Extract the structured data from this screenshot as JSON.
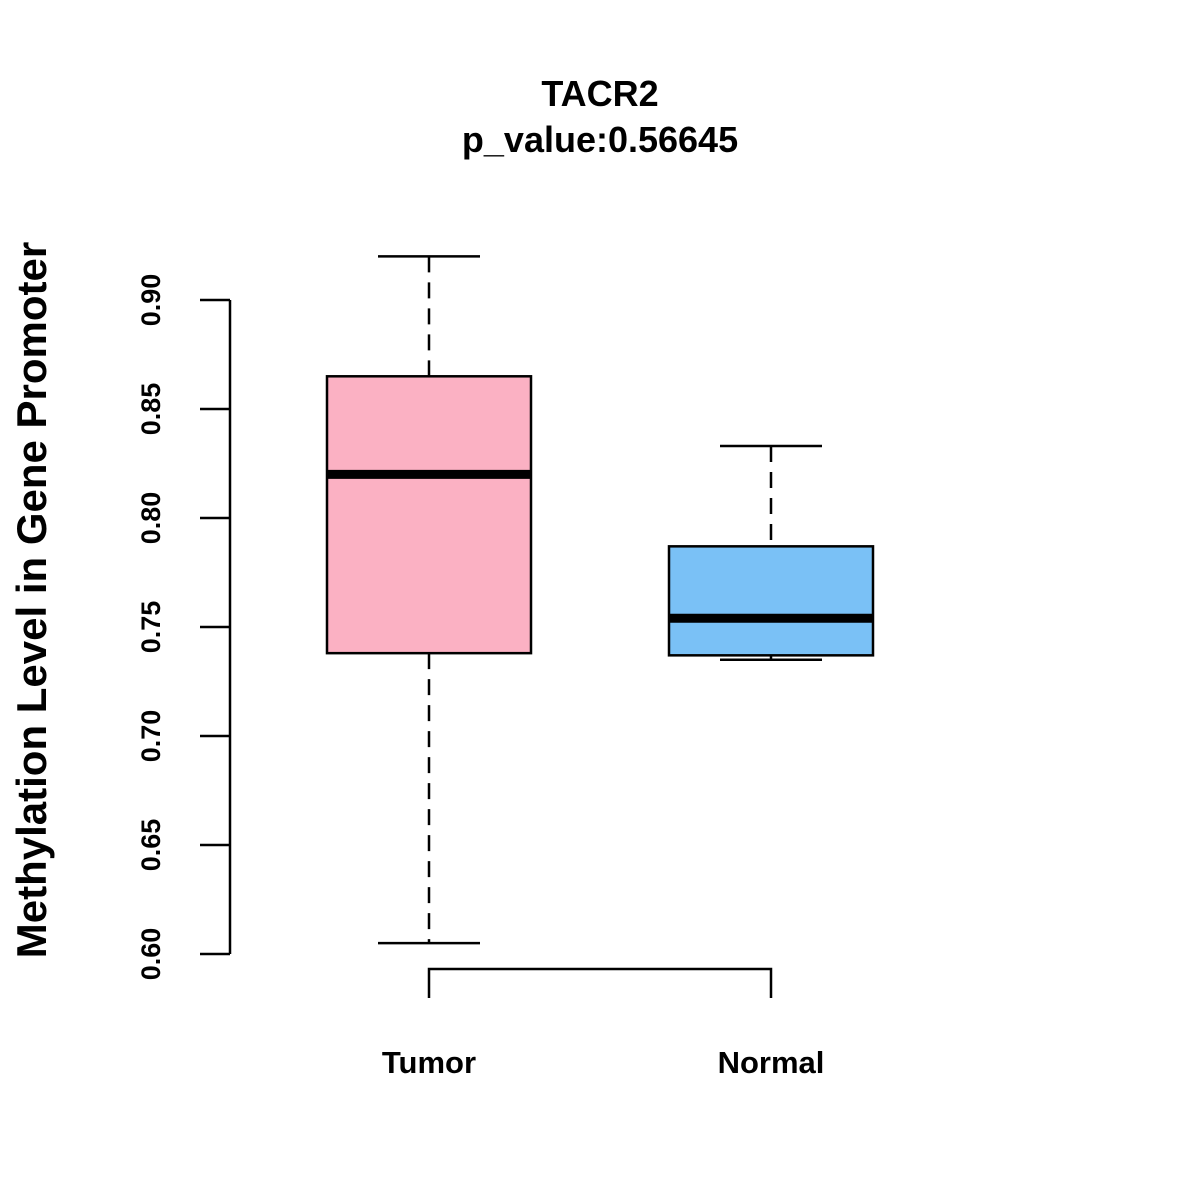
{
  "chart_data": {
    "type": "boxplot",
    "title": "TACR2",
    "subtitle": "p_value:0.56645",
    "xlabel": "",
    "ylabel": "Methylation Level in Gene Promoter",
    "ylim": [
      0.6,
      0.9
    ],
    "yticks": [
      "0.60",
      "0.65",
      "0.70",
      "0.75",
      "0.80",
      "0.85",
      "0.90"
    ],
    "categories": [
      "Tumor",
      "Normal"
    ],
    "boxes": [
      {
        "name": "Tumor",
        "min": 0.605,
        "q1": 0.738,
        "median": 0.82,
        "q3": 0.865,
        "max": 0.92,
        "color": "#FBB1C3"
      },
      {
        "name": "Normal",
        "min": 0.735,
        "q1": 0.737,
        "median": 0.754,
        "q3": 0.787,
        "max": 0.833,
        "color": "#7AC1F6"
      }
    ],
    "annotation": {
      "type": "bracket",
      "from": "Tumor",
      "to": "Normal"
    }
  }
}
